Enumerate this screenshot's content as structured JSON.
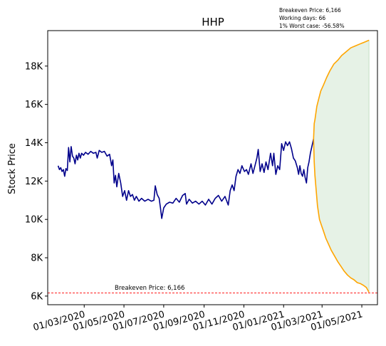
{
  "chart_data": {
    "type": "line",
    "title": "HHP",
    "ylabel": "Stock Price",
    "xlabel": "",
    "annotation_lines": [
      "Breakeven Price: 6,166",
      "Working days: 66",
      "1% Worst case: -56.58%"
    ],
    "breakeven": {
      "value": 6166,
      "label": "Breakeven Price: 6,166",
      "color": "#ff0000"
    },
    "x_ticks": [
      {
        "date": "2020-03-01",
        "label": "01/03/2020"
      },
      {
        "date": "2020-05-01",
        "label": "01/05/2020"
      },
      {
        "date": "2020-07-01",
        "label": "01/07/2020"
      },
      {
        "date": "2020-09-01",
        "label": "01/09/2020"
      },
      {
        "date": "2020-11-01",
        "label": "01/11/2020"
      },
      {
        "date": "2021-01-01",
        "label": "01/01/2021"
      },
      {
        "date": "2021-03-01",
        "label": "01/03/2021"
      },
      {
        "date": "2021-05-01",
        "label": "01/05/2021"
      }
    ],
    "y_ticks": [
      {
        "value": 6000,
        "label": "6K"
      },
      {
        "value": 8000,
        "label": "8K"
      },
      {
        "value": 10000,
        "label": "10K"
      },
      {
        "value": 12000,
        "label": "12K"
      },
      {
        "value": 14000,
        "label": "14K"
      },
      {
        "value": 16000,
        "label": "16K"
      },
      {
        "value": 18000,
        "label": "18K"
      }
    ],
    "xlim": [
      "2020-01-05",
      "2021-05-25"
    ],
    "ylim": [
      5550,
      19850
    ],
    "colors": {
      "price": "#00008b",
      "bands": "#ffa500",
      "fill": "#e6f2e6",
      "fill_stroke": "#b8d8b8"
    },
    "series": [
      {
        "kind": "price",
        "points": [
          [
            "2020-01-21",
            12800
          ],
          [
            "2020-01-23",
            12600
          ],
          [
            "2020-01-25",
            12700
          ],
          [
            "2020-01-27",
            12500
          ],
          [
            "2020-01-29",
            12600
          ],
          [
            "2020-01-31",
            12250
          ],
          [
            "2020-02-02",
            12650
          ],
          [
            "2020-02-04",
            12550
          ],
          [
            "2020-02-06",
            13750
          ],
          [
            "2020-02-08",
            13000
          ],
          [
            "2020-02-10",
            13800
          ],
          [
            "2020-02-12",
            13300
          ],
          [
            "2020-02-14",
            13200
          ],
          [
            "2020-02-16",
            12900
          ],
          [
            "2020-02-18",
            13350
          ],
          [
            "2020-02-20",
            13100
          ],
          [
            "2020-02-22",
            13450
          ],
          [
            "2020-02-24",
            13200
          ],
          [
            "2020-02-26",
            13450
          ],
          [
            "2020-02-29",
            13350
          ],
          [
            "2020-03-03",
            13500
          ],
          [
            "2020-03-07",
            13400
          ],
          [
            "2020-03-11",
            13550
          ],
          [
            "2020-03-15",
            13450
          ],
          [
            "2020-03-19",
            13500
          ],
          [
            "2020-03-21",
            13200
          ],
          [
            "2020-03-24",
            13600
          ],
          [
            "2020-03-28",
            13500
          ],
          [
            "2020-04-01",
            13550
          ],
          [
            "2020-04-05",
            13300
          ],
          [
            "2020-04-09",
            13400
          ],
          [
            "2020-04-12",
            12800
          ],
          [
            "2020-04-14",
            13100
          ],
          [
            "2020-04-16",
            11900
          ],
          [
            "2020-04-18",
            12300
          ],
          [
            "2020-04-20",
            11700
          ],
          [
            "2020-04-23",
            12400
          ],
          [
            "2020-04-26",
            11900
          ],
          [
            "2020-04-29",
            11200
          ],
          [
            "2020-05-02",
            11500
          ],
          [
            "2020-05-05",
            11000
          ],
          [
            "2020-05-08",
            11500
          ],
          [
            "2020-05-11",
            11200
          ],
          [
            "2020-05-14",
            11300
          ],
          [
            "2020-05-17",
            11000
          ],
          [
            "2020-05-20",
            11200
          ],
          [
            "2020-05-24",
            10950
          ],
          [
            "2020-05-28",
            11100
          ],
          [
            "2020-06-02",
            10950
          ],
          [
            "2020-06-07",
            11050
          ],
          [
            "2020-06-12",
            10950
          ],
          [
            "2020-06-16",
            11000
          ],
          [
            "2020-06-18",
            11750
          ],
          [
            "2020-06-21",
            11300
          ],
          [
            "2020-06-24",
            11100
          ],
          [
            "2020-06-26",
            10600
          ],
          [
            "2020-06-28",
            10050
          ],
          [
            "2020-07-01",
            10600
          ],
          [
            "2020-07-05",
            10800
          ],
          [
            "2020-07-10",
            10900
          ],
          [
            "2020-07-15",
            10850
          ],
          [
            "2020-07-20",
            11100
          ],
          [
            "2020-07-25",
            10900
          ],
          [
            "2020-07-30",
            11250
          ],
          [
            "2020-08-03",
            11350
          ],
          [
            "2020-08-05",
            10800
          ],
          [
            "2020-08-09",
            11050
          ],
          [
            "2020-08-14",
            10850
          ],
          [
            "2020-08-19",
            10950
          ],
          [
            "2020-08-24",
            10800
          ],
          [
            "2020-08-29",
            10950
          ],
          [
            "2020-09-03",
            10750
          ],
          [
            "2020-09-08",
            11050
          ],
          [
            "2020-09-13",
            10800
          ],
          [
            "2020-09-18",
            11100
          ],
          [
            "2020-09-23",
            11250
          ],
          [
            "2020-09-28",
            10950
          ],
          [
            "2020-10-03",
            11200
          ],
          [
            "2020-10-08",
            10750
          ],
          [
            "2020-10-11",
            11500
          ],
          [
            "2020-10-14",
            11800
          ],
          [
            "2020-10-17",
            11500
          ],
          [
            "2020-10-20",
            12250
          ],
          [
            "2020-10-23",
            12600
          ],
          [
            "2020-10-26",
            12400
          ],
          [
            "2020-10-29",
            12800
          ],
          [
            "2020-11-02",
            12500
          ],
          [
            "2020-11-05",
            12600
          ],
          [
            "2020-11-08",
            12350
          ],
          [
            "2020-11-12",
            12900
          ],
          [
            "2020-11-15",
            12400
          ],
          [
            "2020-11-18",
            12800
          ],
          [
            "2020-11-21",
            13200
          ],
          [
            "2020-11-23",
            13650
          ],
          [
            "2020-11-26",
            12500
          ],
          [
            "2020-11-29",
            12900
          ],
          [
            "2020-12-02",
            12450
          ],
          [
            "2020-12-05",
            13000
          ],
          [
            "2020-12-08",
            12600
          ],
          [
            "2020-12-12",
            13450
          ],
          [
            "2020-12-15",
            12800
          ],
          [
            "2020-12-17",
            13450
          ],
          [
            "2020-12-20",
            12350
          ],
          [
            "2020-12-23",
            12800
          ],
          [
            "2020-12-26",
            12600
          ],
          [
            "2020-12-29",
            13950
          ],
          [
            "2021-01-01",
            13600
          ],
          [
            "2021-01-04",
            14050
          ],
          [
            "2021-01-07",
            13850
          ],
          [
            "2021-01-10",
            14050
          ],
          [
            "2021-01-13",
            13700
          ],
          [
            "2021-01-16",
            13200
          ],
          [
            "2021-01-19",
            13050
          ],
          [
            "2021-01-22",
            12700
          ],
          [
            "2021-01-24",
            12350
          ],
          [
            "2021-01-26",
            12800
          ],
          [
            "2021-01-28",
            12400
          ],
          [
            "2021-01-30",
            12250
          ],
          [
            "2021-02-01",
            12600
          ],
          [
            "2021-02-03",
            12200
          ],
          [
            "2021-02-05",
            11900
          ],
          [
            "2021-02-07",
            12700
          ],
          [
            "2021-02-09",
            13000
          ],
          [
            "2021-02-11",
            13450
          ],
          [
            "2021-02-14",
            13900
          ],
          [
            "2021-02-16",
            14200
          ]
        ]
      },
      {
        "kind": "upper",
        "points": [
          [
            "2021-02-16",
            14200
          ],
          [
            "2021-02-17",
            15000
          ],
          [
            "2021-02-18",
            15200
          ],
          [
            "2021-02-21",
            15900
          ],
          [
            "2021-02-24",
            16300
          ],
          [
            "2021-02-27",
            16700
          ],
          [
            "2021-03-03",
            17000
          ],
          [
            "2021-03-08",
            17400
          ],
          [
            "2021-03-13",
            17750
          ],
          [
            "2021-03-19",
            18100
          ],
          [
            "2021-03-25",
            18300
          ],
          [
            "2021-03-31",
            18550
          ],
          [
            "2021-04-07",
            18750
          ],
          [
            "2021-04-14",
            18950
          ],
          [
            "2021-04-21",
            19050
          ],
          [
            "2021-04-28",
            19150
          ],
          [
            "2021-05-05",
            19250
          ],
          [
            "2021-05-12",
            19350
          ]
        ]
      },
      {
        "kind": "lower",
        "points": [
          [
            "2021-02-16",
            14200
          ],
          [
            "2021-02-17",
            13000
          ],
          [
            "2021-02-18",
            12300
          ],
          [
            "2021-02-20",
            11500
          ],
          [
            "2021-02-22",
            10700
          ],
          [
            "2021-02-25",
            10000
          ],
          [
            "2021-02-28",
            9700
          ],
          [
            "2021-03-03",
            9400
          ],
          [
            "2021-03-07",
            9000
          ],
          [
            "2021-03-11",
            8700
          ],
          [
            "2021-03-15",
            8400
          ],
          [
            "2021-03-20",
            8100
          ],
          [
            "2021-03-25",
            7800
          ],
          [
            "2021-03-30",
            7550
          ],
          [
            "2021-04-04",
            7300
          ],
          [
            "2021-04-09",
            7100
          ],
          [
            "2021-04-14",
            6950
          ],
          [
            "2021-04-19",
            6850
          ],
          [
            "2021-04-24",
            6700
          ],
          [
            "2021-04-29",
            6650
          ],
          [
            "2021-05-04",
            6550
          ],
          [
            "2021-05-08",
            6450
          ],
          [
            "2021-05-12",
            6200
          ]
        ]
      }
    ]
  }
}
